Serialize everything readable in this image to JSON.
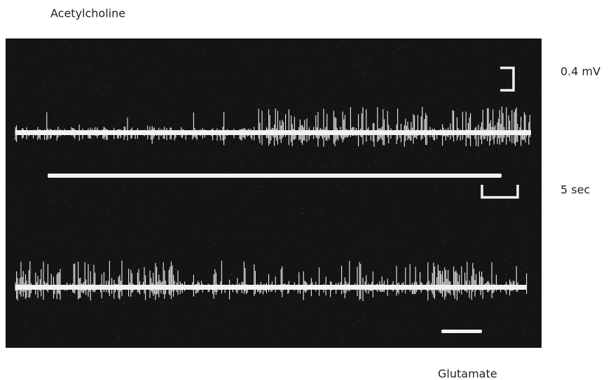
{
  "labels": {
    "top_drug": "Acetylcholine",
    "voltage_scale": "0.4 mV",
    "time_scale": "5 sec",
    "bottom_drug": "Glutamate"
  }
}
